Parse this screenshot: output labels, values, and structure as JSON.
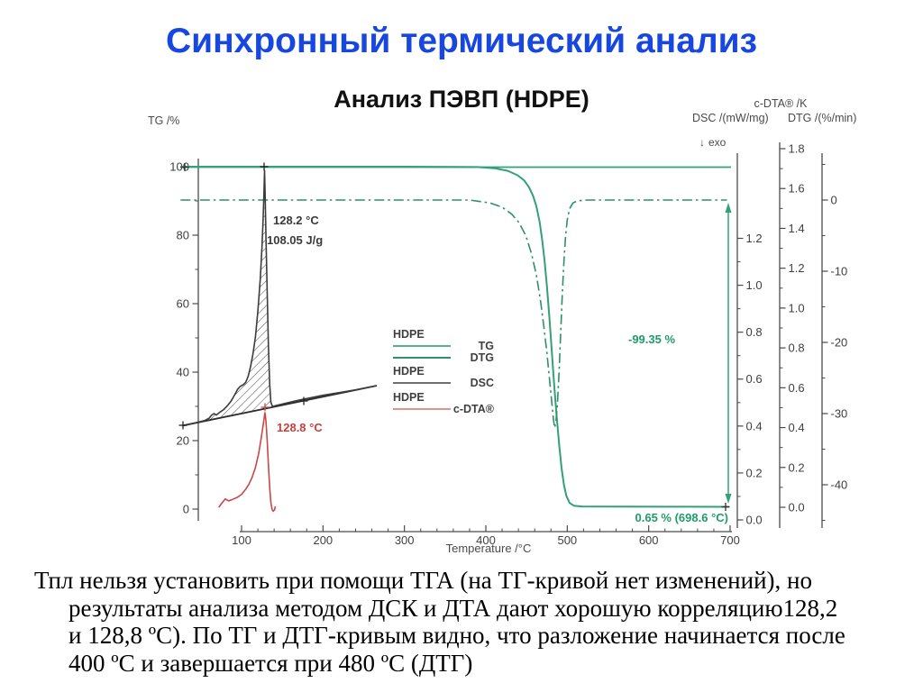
{
  "slide": {
    "title": "Синхронный термический анализ",
    "subtitle": "Анализ ПЭВП (HDPE)",
    "body_lines": [
      "Тпл нельзя установить при помощи ТГА (на ТГ-кривой нет изменений), но",
      "результаты анализа методом ДСК и ДТА дают хорошую корреляцию128,2",
      "и 128,8 ºС). По ТГ и ДТГ-кривым видно, что разложение начинается после",
      "400 ºС и завершается при 480 ºС (ДТГ)"
    ]
  },
  "chart_data": {
    "type": "line",
    "title": "Анализ ПЭВП (HDPE)",
    "sample": "HDPE",
    "axes": {
      "x": {
        "label": "Temperature /°C",
        "ticks": [
          100,
          200,
          300,
          400,
          500,
          600,
          700
        ],
        "minor_step": 20,
        "range": [
          100,
          700
        ]
      },
      "tg": {
        "label": "TG /%",
        "ticks": [
          100,
          80,
          60,
          40,
          20,
          0
        ],
        "minor_step": 10,
        "range": [
          0,
          100
        ]
      },
      "dsc": {
        "label": "DSC /(mW/mg)",
        "exo_arrow": "↓",
        "exo_label": "exo",
        "ticks": [
          "1.2",
          "1.0",
          "0.8",
          "0.6",
          "0.4",
          "0.2",
          "0.0"
        ],
        "minor_step": 0.1,
        "range": [
          0,
          1.2
        ]
      },
      "cdta": {
        "label": "c-DTA® /K",
        "ticks": [
          "1.8",
          "1.6",
          "1.4",
          "1.2",
          "1.0",
          "0.8",
          "0.6",
          "0.4",
          "0.2",
          "0.0"
        ],
        "minor_step": 0.1,
        "range": [
          0,
          1.8
        ]
      },
      "dtg": {
        "label": "DTG /(%/min)",
        "ticks": [
          0,
          -10,
          -20,
          -30,
          -40
        ],
        "minor_step": 5,
        "range": [
          -40,
          0
        ]
      }
    },
    "series": [
      {
        "name": "TG",
        "sample": "HDPE",
        "axis": "tg",
        "color": "#33a078",
        "style": "solid",
        "points": [
          [
            25,
            100
          ],
          [
            150,
            100
          ],
          [
            300,
            100
          ],
          [
            390,
            99.9
          ],
          [
            412,
            99.5
          ],
          [
            427,
            98.8
          ],
          [
            439,
            97.5
          ],
          [
            447,
            96
          ],
          [
            453,
            94
          ],
          [
            458,
            91.5
          ],
          [
            462,
            88.5
          ],
          [
            466,
            84
          ],
          [
            469,
            79
          ],
          [
            472,
            73
          ],
          [
            475,
            65
          ],
          [
            478,
            56
          ],
          [
            481,
            46
          ],
          [
            484,
            36
          ],
          [
            487,
            27
          ],
          [
            490,
            19
          ],
          [
            493,
            12
          ],
          [
            496,
            7
          ],
          [
            499,
            3.8
          ],
          [
            503,
            1.8
          ],
          [
            508,
            1.0
          ],
          [
            518,
            0.75
          ],
          [
            560,
            0.7
          ],
          [
            620,
            0.68
          ],
          [
            699,
            0.65
          ]
        ]
      },
      {
        "name": "DTG",
        "sample": "HDPE",
        "axis": "dtg",
        "color": "#2c9168",
        "style": "dashdot",
        "points": [
          [
            25,
            0
          ],
          [
            150,
            0
          ],
          [
            300,
            0
          ],
          [
            380,
            0
          ],
          [
            405,
            -0.4
          ],
          [
            420,
            -1
          ],
          [
            432,
            -2
          ],
          [
            441,
            -3.2
          ],
          [
            449,
            -5
          ],
          [
            456,
            -7.5
          ],
          [
            462,
            -10.5
          ],
          [
            467,
            -14
          ],
          [
            471,
            -17.5
          ],
          [
            475,
            -21.5
          ],
          [
            478,
            -25
          ],
          [
            481,
            -28.5
          ],
          [
            483,
            -30.8
          ],
          [
            484.5,
            -32
          ],
          [
            486,
            -31.2
          ],
          [
            488,
            -28.5
          ],
          [
            490,
            -24
          ],
          [
            492,
            -18.5
          ],
          [
            494,
            -13
          ],
          [
            496,
            -8.5
          ],
          [
            498,
            -5
          ],
          [
            500,
            -2.8
          ],
          [
            503,
            -1.2
          ],
          [
            507,
            -0.4
          ],
          [
            513,
            -0.1
          ],
          [
            525,
            0
          ],
          [
            600,
            0
          ],
          [
            696,
            0
          ]
        ]
      },
      {
        "name": "DSC",
        "sample": "HDPE",
        "axis": "dsc",
        "color": "#3c3c3c",
        "style": "solid",
        "points": [
          [
            28,
            0.402
          ],
          [
            45,
            0.415
          ],
          [
            55,
            0.424
          ],
          [
            60,
            0.433
          ],
          [
            63,
            0.446
          ],
          [
            66,
            0.453
          ],
          [
            69,
            0.447
          ],
          [
            73,
            0.458
          ],
          [
            78,
            0.47
          ],
          [
            83,
            0.488
          ],
          [
            87,
            0.506
          ],
          [
            91,
            0.53
          ],
          [
            95,
            0.556
          ],
          [
            98,
            0.568
          ],
          [
            102,
            0.576
          ],
          [
            105,
            0.586
          ],
          [
            108,
            0.61
          ],
          [
            111,
            0.652
          ],
          [
            114,
            0.706
          ],
          [
            117,
            0.78
          ],
          [
            120,
            0.89
          ],
          [
            123,
            1.03
          ],
          [
            125,
            1.16
          ],
          [
            126.5,
            1.28
          ],
          [
            127.5,
            1.39
          ],
          [
            128.2,
            1.49
          ],
          [
            129,
            1.38
          ],
          [
            130,
            1.2
          ],
          [
            131.5,
            0.96
          ],
          [
            133,
            0.74
          ],
          [
            134.5,
            0.58
          ],
          [
            136,
            0.502
          ],
          [
            138,
            0.483
          ],
          [
            142,
            0.487
          ],
          [
            150,
            0.494
          ],
          [
            170,
            0.51
          ],
          [
            200,
            0.531
          ],
          [
            240,
            0.554
          ],
          [
            266,
            0.572
          ]
        ]
      },
      {
        "name": "c-DTA®",
        "sample": "HDPE",
        "axis": "cdta",
        "color": "#c94747",
        "style": "solid",
        "points": [
          [
            72,
            0.0
          ],
          [
            76,
            0.022
          ],
          [
            80,
            0.042
          ],
          [
            84,
            0.032
          ],
          [
            89,
            0.04
          ],
          [
            95,
            0.05
          ],
          [
            100,
            0.065
          ],
          [
            105,
            0.09
          ],
          [
            109,
            0.115
          ],
          [
            113,
            0.15
          ],
          [
            117,
            0.2
          ],
          [
            121,
            0.27
          ],
          [
            124,
            0.345
          ],
          [
            126.5,
            0.41
          ],
          [
            128,
            0.456
          ],
          [
            128.8,
            0.475
          ],
          [
            130,
            0.43
          ],
          [
            131.5,
            0.33
          ],
          [
            133,
            0.21
          ],
          [
            134.5,
            0.1
          ],
          [
            136,
            0.025
          ],
          [
            137.5,
            -0.012
          ],
          [
            139,
            -0.02
          ],
          [
            140.5,
            -0.012
          ],
          [
            141.5,
            0.004
          ]
        ]
      }
    ],
    "dsc_baseline": {
      "from": [
        28,
        0.402
      ],
      "to": [
        266,
        0.572
      ]
    },
    "mass_change": {
      "label": "-99.35 %",
      "final_label": "0.65 % (698.6 °C)"
    },
    "peak_annotations": [
      {
        "series": "DSC",
        "label": "128.2 °C"
      },
      {
        "series": "DSC",
        "label": "108.05 J/g"
      },
      {
        "series": "c-DTA®",
        "label": "128.8 °C"
      }
    ],
    "legend": {
      "groups": [
        {
          "sample": "HDPE",
          "entries": [
            {
              "label": "TG",
              "color": "#57b287"
            },
            {
              "label": "DTG",
              "color": "#2e9168"
            }
          ]
        },
        {
          "sample": "HDPE",
          "entries": [
            {
              "label": "DSC",
              "color": "#6f6f6f"
            }
          ]
        },
        {
          "sample": "HDPE",
          "entries": [
            {
              "label": "c-DTA®",
              "color": "#e2938a"
            }
          ]
        }
      ]
    }
  }
}
